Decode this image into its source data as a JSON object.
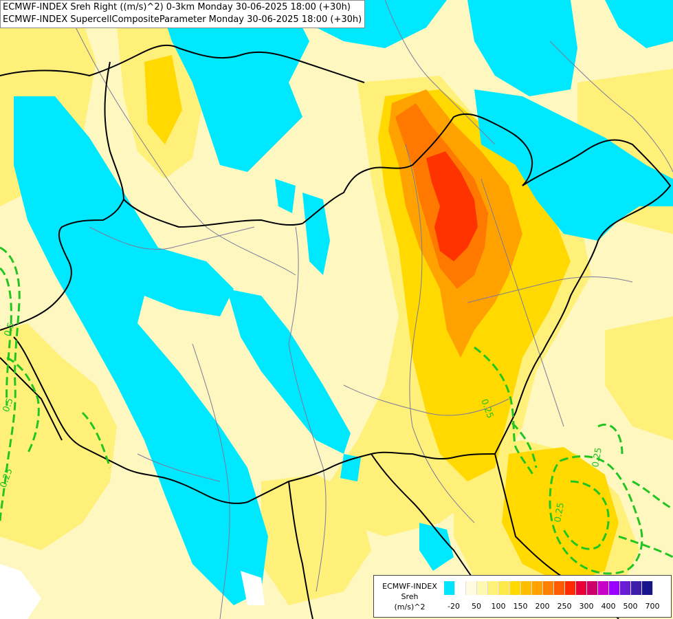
{
  "titles": {
    "line1": "ECMWF-INDEX Sreh Right ((m/s)^2) 0-3km Monday 30-06-2025 18:00 (+30h)",
    "line2": "ECMWF-INDEX SupercellCompositeParameter Monday 30-06-2025 18:00 (+30h)"
  },
  "legend": {
    "line1": "ECMWF-INDEX",
    "line2": "Sreh",
    "line3": "(m/s)^2",
    "colors": [
      "#00e5ff",
      "#ffffff",
      "#fffbe0",
      "#fff8b0",
      "#fff07a",
      "#ffe94a",
      "#ffd900",
      "#ffbd00",
      "#ffa200",
      "#ff8000",
      "#ff5c00",
      "#ff2a00",
      "#e8003a",
      "#cc0066",
      "#c800c8",
      "#9900ff",
      "#6a1cd4",
      "#3c1ea8",
      "#1a148c"
    ],
    "ticks": [
      "-20",
      "50",
      "100",
      "150",
      "200",
      "250",
      "300",
      "400",
      "500",
      "700"
    ]
  },
  "contour_labels": [
    "0.25",
    "0.25",
    "0.25",
    "0.25",
    "0.5",
    "0.5"
  ],
  "colors": {
    "cyan": "#00e8ff",
    "pale": "#fff7c0",
    "yellow": "#ffe94a",
    "orange": "#ffa200",
    "red": "#ff3300",
    "contour": "#21c421"
  }
}
